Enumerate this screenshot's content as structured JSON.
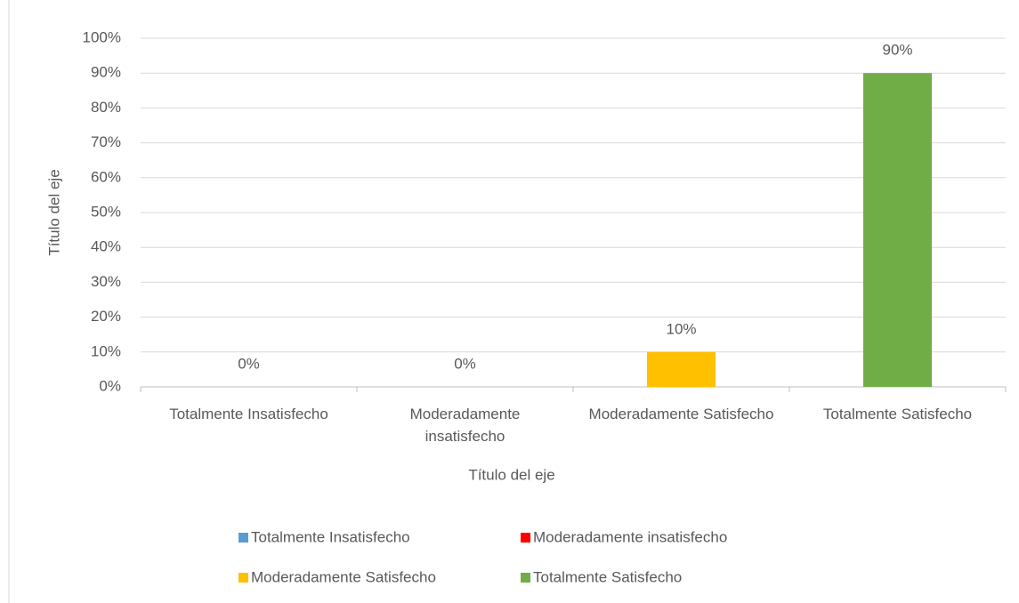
{
  "chart_data": {
    "type": "bar",
    "x_label": "Título del eje",
    "y_label": "Título del eje",
    "categories": [
      "Totalmente Insatisfecho",
      "Moderadamente insatisfecho",
      "Moderadamente Satisfecho",
      "Totalmente Satisfecho"
    ],
    "values": [
      0,
      0,
      10,
      90
    ],
    "value_labels": [
      "0%",
      "0%",
      "10%",
      "90%"
    ],
    "colors": [
      "#5b9bd5",
      "#ff0000",
      "#ffc000",
      "#70ad47"
    ],
    "ylim": [
      0,
      100
    ],
    "yticks": [
      {
        "value": 0,
        "label": "0%"
      },
      {
        "value": 10,
        "label": "10%"
      },
      {
        "value": 20,
        "label": "20%"
      },
      {
        "value": 30,
        "label": "30%"
      },
      {
        "value": 40,
        "label": "40%"
      },
      {
        "value": 50,
        "label": "50%"
      },
      {
        "value": 60,
        "label": "60%"
      },
      {
        "value": 70,
        "label": "70%"
      },
      {
        "value": 80,
        "label": "80%"
      },
      {
        "value": 90,
        "label": "90%"
      },
      {
        "value": 100,
        "label": "100%"
      }
    ],
    "grid": true,
    "legend": "bottom"
  }
}
